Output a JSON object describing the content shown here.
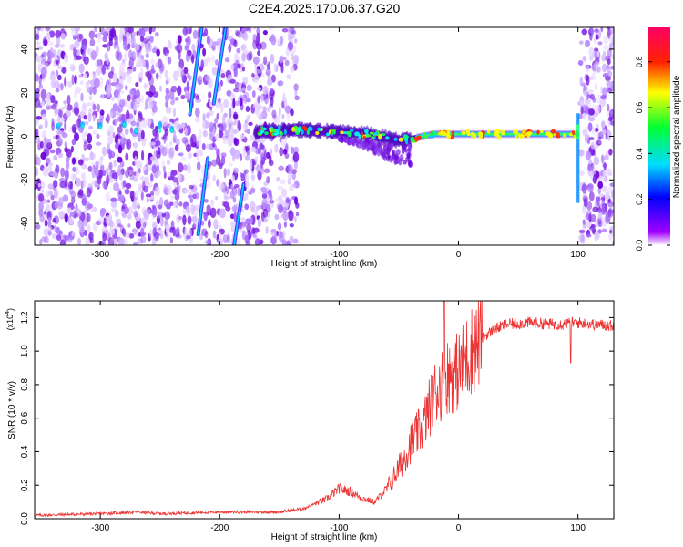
{
  "title": "C2E4.2025.170.06.37.G20",
  "chart_data": [
    {
      "type": "heatmap",
      "title": "C2E4.2025.170.06.37.G20",
      "xlabel": "Height of straight line (km)",
      "ylabel": "Frequency (Hz)",
      "xlim": [
        -355,
        130
      ],
      "ylim": [
        -50,
        50
      ],
      "xticks": [
        -300,
        -200,
        -100,
        0,
        100
      ],
      "yticks": [
        -40,
        -20,
        0,
        20,
        40
      ],
      "colorbar": {
        "label": "Normalized spectral amplitude",
        "range": [
          0,
          0.95
        ],
        "ticks": [
          0.0,
          0.2,
          0.4,
          0.6,
          0.8
        ]
      },
      "features": {
        "main_signal_x": [
          -170,
          -135,
          -100,
          -75,
          -50,
          -40,
          -20,
          0,
          50,
          100
        ],
        "main_signal_freq": [
          2,
          3,
          2,
          1,
          -2,
          -1,
          1,
          1,
          1,
          1
        ],
        "streaks": [
          {
            "x": [
              -225,
              -215
            ],
            "freq": [
              10,
              50
            ]
          },
          {
            "x": [
              -205,
              -195
            ],
            "freq": [
              15,
              50
            ]
          },
          {
            "x": [
              -218,
              -210
            ],
            "freq": [
              -45,
              -10
            ]
          },
          {
            "x": [
              -188,
              -180
            ],
            "freq": [
              -50,
              -22
            ]
          }
        ]
      }
    },
    {
      "type": "line",
      "xlabel": "Height of straight line (km)",
      "ylabel": "SNR (10 * v/v)",
      "yscale_label": "(x10",
      "yscale_exp": "4",
      "xlim": [
        -355,
        130
      ],
      "ylim": [
        0,
        1.3
      ],
      "xticks": [
        -300,
        -200,
        -100,
        0,
        100
      ],
      "yticks": [
        0.0,
        0.2,
        0.4,
        0.6,
        0.8,
        1.0,
        1.2
      ],
      "series": [
        {
          "color": "#ee3333",
          "x": [
            -355,
            -300,
            -270,
            -250,
            -200,
            -150,
            -130,
            -110,
            -100,
            -90,
            -80,
            -70,
            -60,
            -50,
            -40,
            -30,
            -20,
            -10,
            0,
            10,
            20,
            30,
            40,
            60,
            80,
            100,
            130
          ],
          "y": [
            0.02,
            0.03,
            0.04,
            0.03,
            0.04,
            0.04,
            0.06,
            0.12,
            0.18,
            0.16,
            0.12,
            0.1,
            0.18,
            0.3,
            0.45,
            0.55,
            0.75,
            0.85,
            0.88,
            1.0,
            1.08,
            1.13,
            1.16,
            1.17,
            1.16,
            1.17,
            1.15
          ]
        }
      ]
    }
  ]
}
